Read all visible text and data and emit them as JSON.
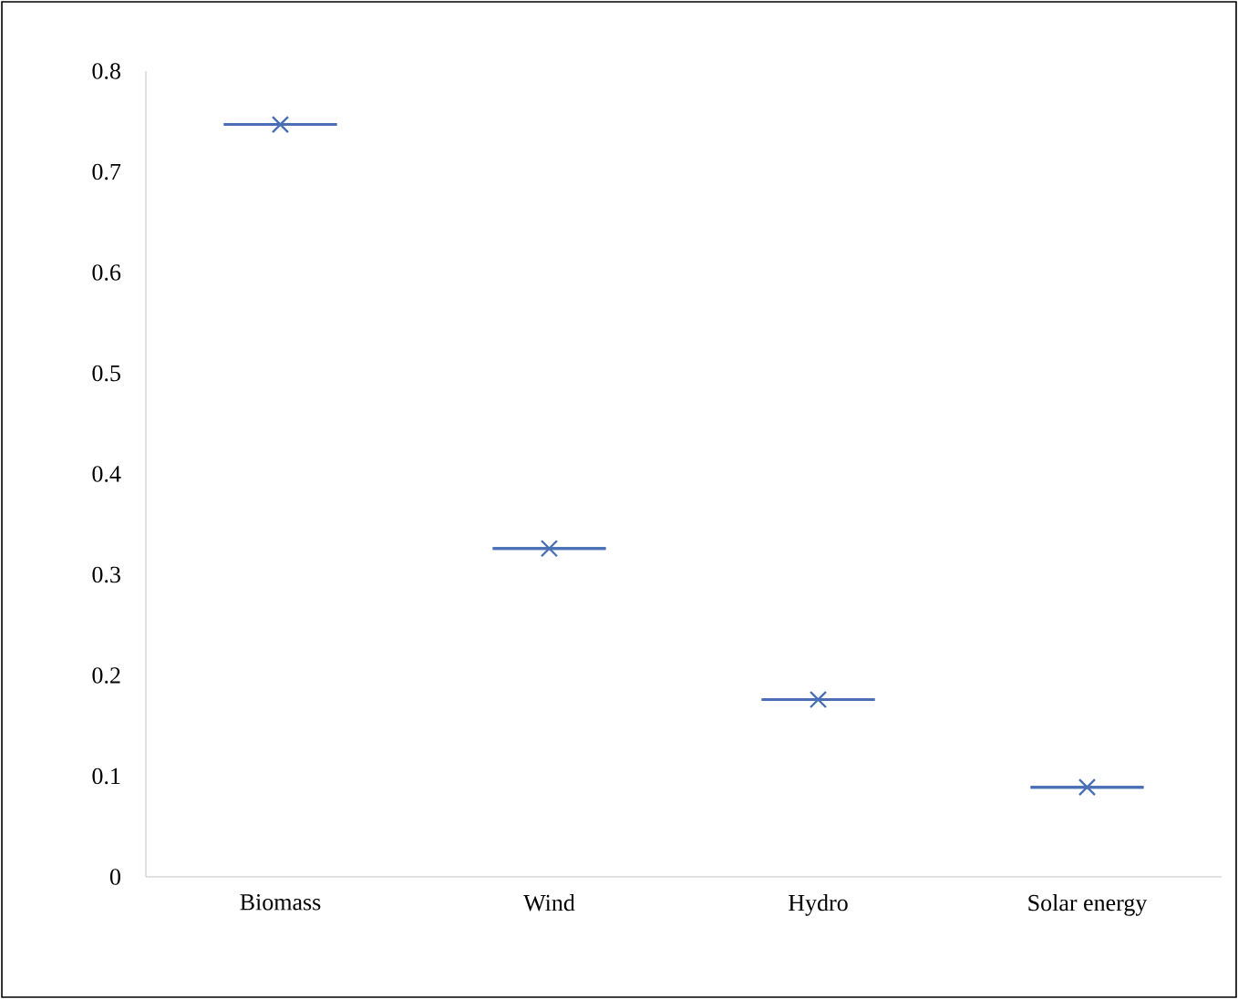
{
  "chart_data": {
    "type": "box",
    "categories": [
      "Biomass",
      "Wind",
      "Hydro",
      "Solar energy"
    ],
    "boxes": [
      {
        "low": 0.747,
        "q1": 0.747,
        "median": 0.747,
        "q3": 0.747,
        "high": 0.747,
        "mean": 0.747
      },
      {
        "low": 0.326,
        "q1": 0.326,
        "median": 0.326,
        "q3": 0.326,
        "high": 0.326,
        "mean": 0.326
      },
      {
        "low": 0.176,
        "q1": 0.176,
        "median": 0.176,
        "q3": 0.176,
        "high": 0.176,
        "mean": 0.176
      },
      {
        "low": 0.089,
        "q1": 0.089,
        "median": 0.089,
        "q3": 0.089,
        "high": 0.089,
        "mean": 0.089
      }
    ],
    "color": "#4a6fb5",
    "ylim": [
      0,
      0.8
    ],
    "yticks": [
      0,
      0.1,
      0.2,
      0.3,
      0.4,
      0.5,
      0.6,
      0.7,
      0.8
    ],
    "grid": false,
    "marker": "cross"
  }
}
